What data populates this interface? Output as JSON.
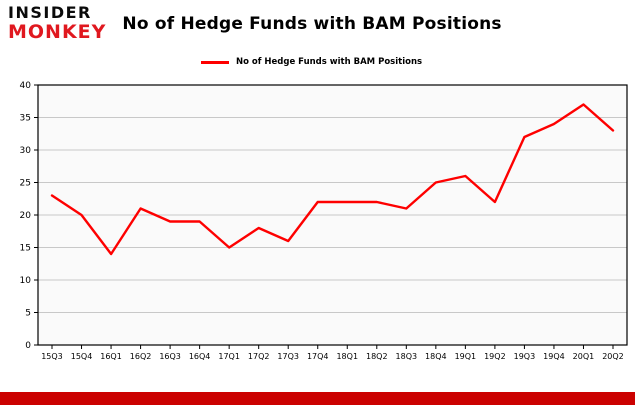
{
  "header": {
    "logo_line1": "INSIDER",
    "logo_line2": "MONKEY",
    "title": "No of Hedge Funds with BAM Positions"
  },
  "legend": {
    "label": "No of Hedge Funds with BAM Positions",
    "color": "#fe0000"
  },
  "chart_data": {
    "type": "line",
    "title": "No of Hedge Funds with BAM Positions",
    "categories": [
      "15Q3",
      "15Q4",
      "16Q1",
      "16Q2",
      "16Q3",
      "16Q4",
      "17Q1",
      "17Q2",
      "17Q3",
      "17Q4",
      "18Q1",
      "18Q2",
      "18Q3",
      "18Q4",
      "19Q1",
      "19Q2",
      "19Q3",
      "19Q4",
      "20Q1",
      "20Q2"
    ],
    "series": [
      {
        "name": "No of Hedge Funds with BAM Positions",
        "color": "#fe0000",
        "values": [
          23,
          20,
          14,
          21,
          19,
          19,
          15,
          18,
          16,
          22,
          22,
          22,
          21,
          25,
          26,
          22,
          32,
          34,
          37,
          33
        ]
      }
    ],
    "xlabel": "",
    "ylabel": "",
    "ylim": [
      0,
      40
    ],
    "yticks": [
      0,
      5,
      10,
      15,
      20,
      25,
      30,
      35,
      40
    ],
    "grid": true,
    "grid_color": "#c8c8c8",
    "plot_bg": "#fafafa",
    "legend_position": "top"
  },
  "footer": {
    "bar_color": "#cb0100"
  }
}
